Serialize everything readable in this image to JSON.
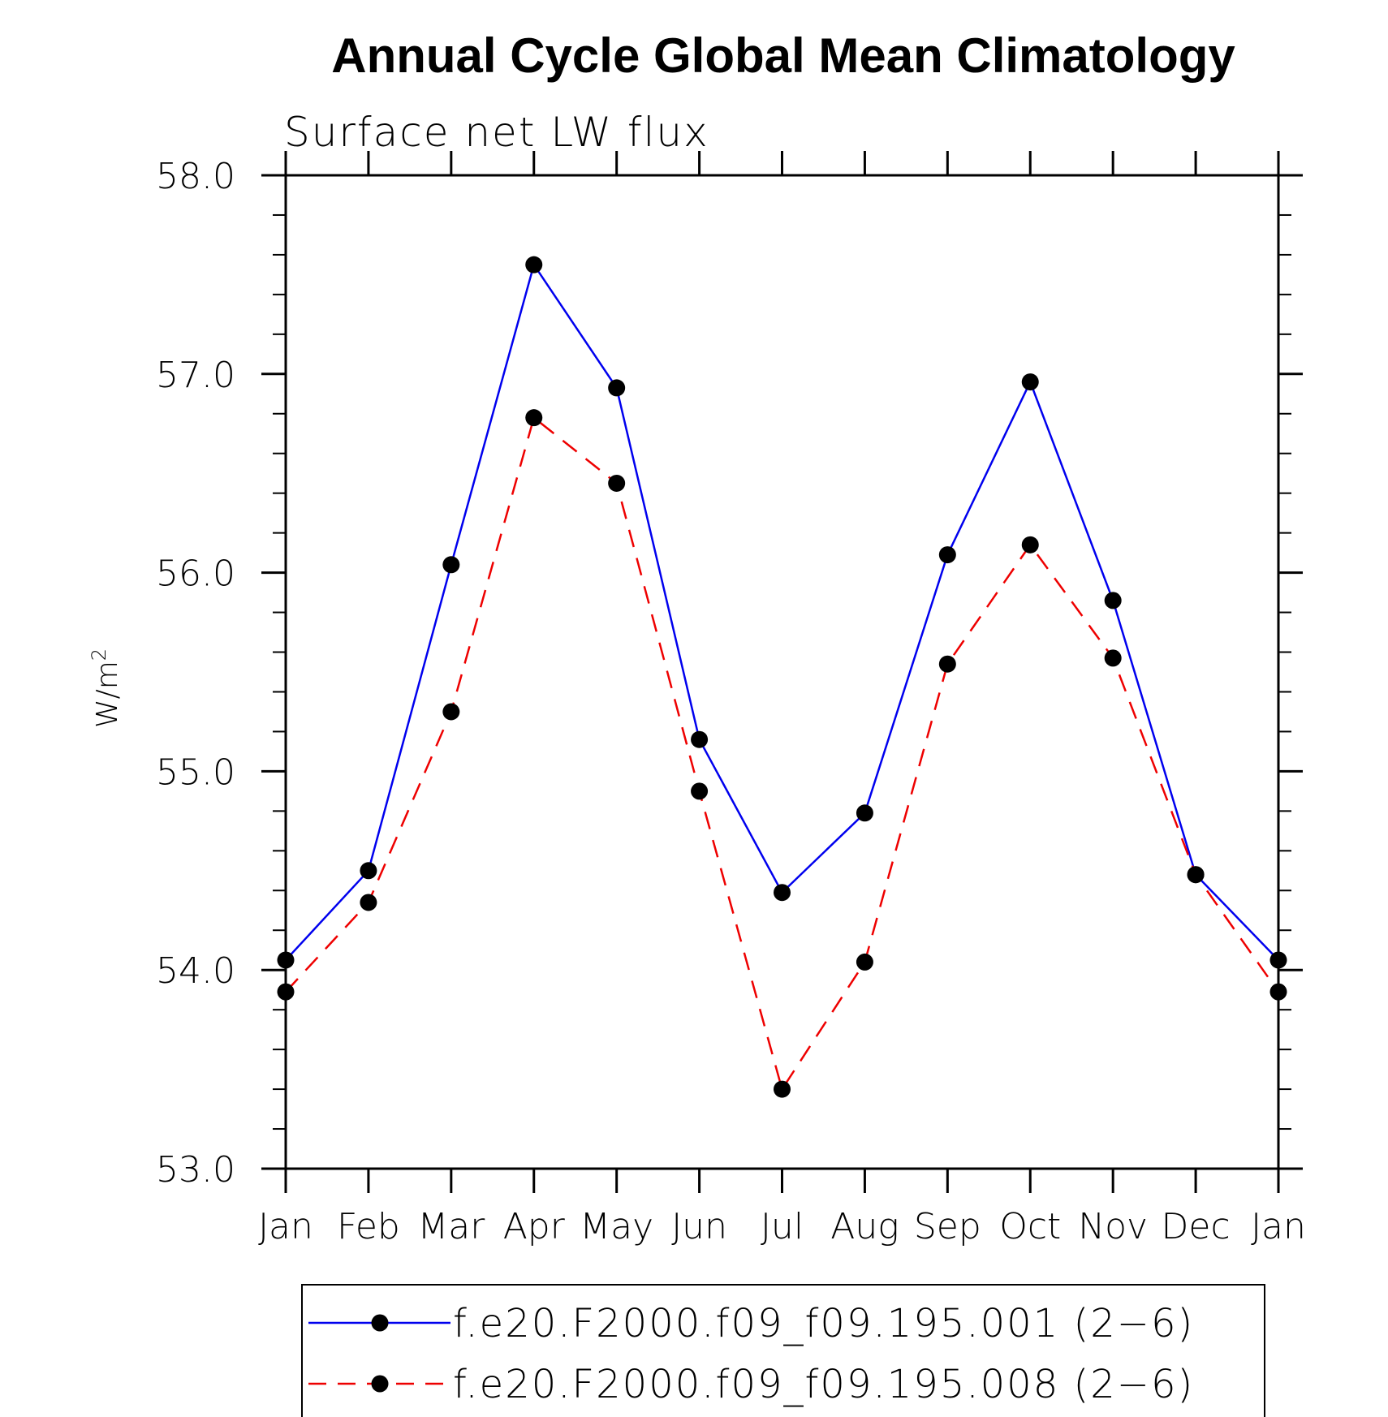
{
  "chart_data": {
    "type": "line",
    "title": "Annual Cycle Global Mean Climatology",
    "subtitle": "Surface net LW flux",
    "ylabel": "W/m",
    "ylabel_sup": "2",
    "xlabel": "",
    "ylim": [
      53.0,
      58.0
    ],
    "y_ticks": [
      53.0,
      54.0,
      55.0,
      56.0,
      57.0,
      58.0
    ],
    "y_tick_labels": [
      "53.0",
      "54.0",
      "55.0",
      "56.0",
      "57.0",
      "58.0"
    ],
    "y_minor_step": 0.2,
    "categories": [
      "Jan",
      "Feb",
      "Mar",
      "Apr",
      "May",
      "Jun",
      "Jul",
      "Aug",
      "Sep",
      "Oct",
      "Nov",
      "Dec",
      "Jan"
    ],
    "legend_position": "bottom",
    "grid": false,
    "series": [
      {
        "name": "f.e20.F2000.f09_f09.195.001 (2−6)",
        "color": "#0000ee",
        "dash": "solid",
        "marker_color": "#000000",
        "values": [
          54.05,
          54.5,
          56.04,
          57.55,
          56.93,
          55.16,
          54.39,
          54.79,
          56.09,
          56.96,
          55.86,
          54.48,
          54.05
        ]
      },
      {
        "name": "f.e20.F2000.f09_f09.195.008 (2−6)",
        "color": "#ee0000",
        "dash": "dashed",
        "marker_color": "#000000",
        "values": [
          53.89,
          54.34,
          55.3,
          56.78,
          56.45,
          54.9,
          53.4,
          54.04,
          55.54,
          56.14,
          55.57,
          54.48,
          53.89
        ]
      }
    ]
  }
}
